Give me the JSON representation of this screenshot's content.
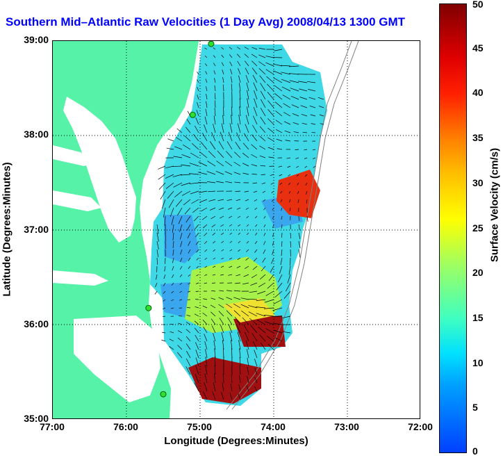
{
  "title": "Southern Mid–Atlantic Raw Velocities (1 Day Avg) 2008/04/13 1300 GMT",
  "xlabel": "Longitude (Degrees:Minutes)",
  "ylabel": "Latitude (Degrees:Minutes)",
  "colorbar_label": "Surface Velocity (cm/s)",
  "x_ticks": [
    "77:00",
    "76:00",
    "75:00",
    "74:00",
    "73:00",
    "72:00"
  ],
  "y_ticks": [
    "39:00",
    "38:00",
    "37:00",
    "36:00",
    "35:00"
  ],
  "colorbar_ticks": [
    "50",
    "45",
    "40",
    "35",
    "30",
    "25",
    "20",
    "15",
    "10",
    "5",
    "0"
  ],
  "colors": {
    "land": "#55f2a8",
    "water_background": "#ffffff",
    "title": "#0000ff",
    "vectors": "#000000"
  },
  "map_data": {
    "lon_range": [
      -77,
      -72
    ],
    "lat_range": [
      35,
      39
    ],
    "colorbar_range": [
      0,
      50
    ],
    "stations": [
      {
        "lon": -74.85,
        "lat": 38.97
      },
      {
        "lon": -75.1,
        "lat": 38.22
      },
      {
        "lon": -75.7,
        "lat": 36.18
      },
      {
        "lon": -75.5,
        "lat": 35.27
      }
    ],
    "hotspots": [
      {
        "lon": -73.7,
        "lat": 37.3,
        "value": 48
      },
      {
        "lon": -74.2,
        "lat": 35.95,
        "value": 50
      },
      {
        "lon": -74.5,
        "lat": 35.4,
        "value": 50
      }
    ]
  }
}
